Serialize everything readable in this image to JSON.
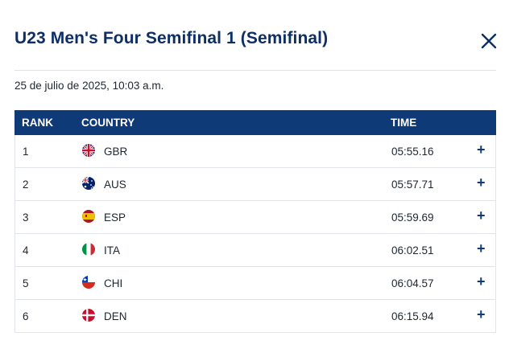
{
  "modal": {
    "title": "U23 Men's Four Semifinal 1 (Semifinal)",
    "date": "25 de julio de 2025, 10:03 a.m.",
    "close_icon": "close-icon"
  },
  "table": {
    "headers": {
      "rank": "RANK",
      "country": "COUNTRY",
      "time": "TIME"
    },
    "rows": [
      {
        "rank": "1",
        "country": "GBR",
        "time": "05:55.16",
        "expand": "+",
        "flag_icon": "flag-gbr-icon"
      },
      {
        "rank": "2",
        "country": "AUS",
        "time": "05:57.71",
        "expand": "+",
        "flag_icon": "flag-aus-icon"
      },
      {
        "rank": "3",
        "country": "ESP",
        "time": "05:59.69",
        "expand": "+",
        "flag_icon": "flag-esp-icon"
      },
      {
        "rank": "4",
        "country": "ITA",
        "time": "06:02.51",
        "expand": "+",
        "flag_icon": "flag-ita-icon"
      },
      {
        "rank": "5",
        "country": "CHI",
        "time": "06:04.57",
        "expand": "+",
        "flag_icon": "flag-chi-icon"
      },
      {
        "rank": "6",
        "country": "DEN",
        "time": "06:15.94",
        "expand": "+",
        "flag_icon": "flag-den-icon"
      }
    ]
  },
  "colors": {
    "header_bg": "#0f3a78",
    "title": "#0d2f66",
    "accent": "#0f3a78"
  }
}
